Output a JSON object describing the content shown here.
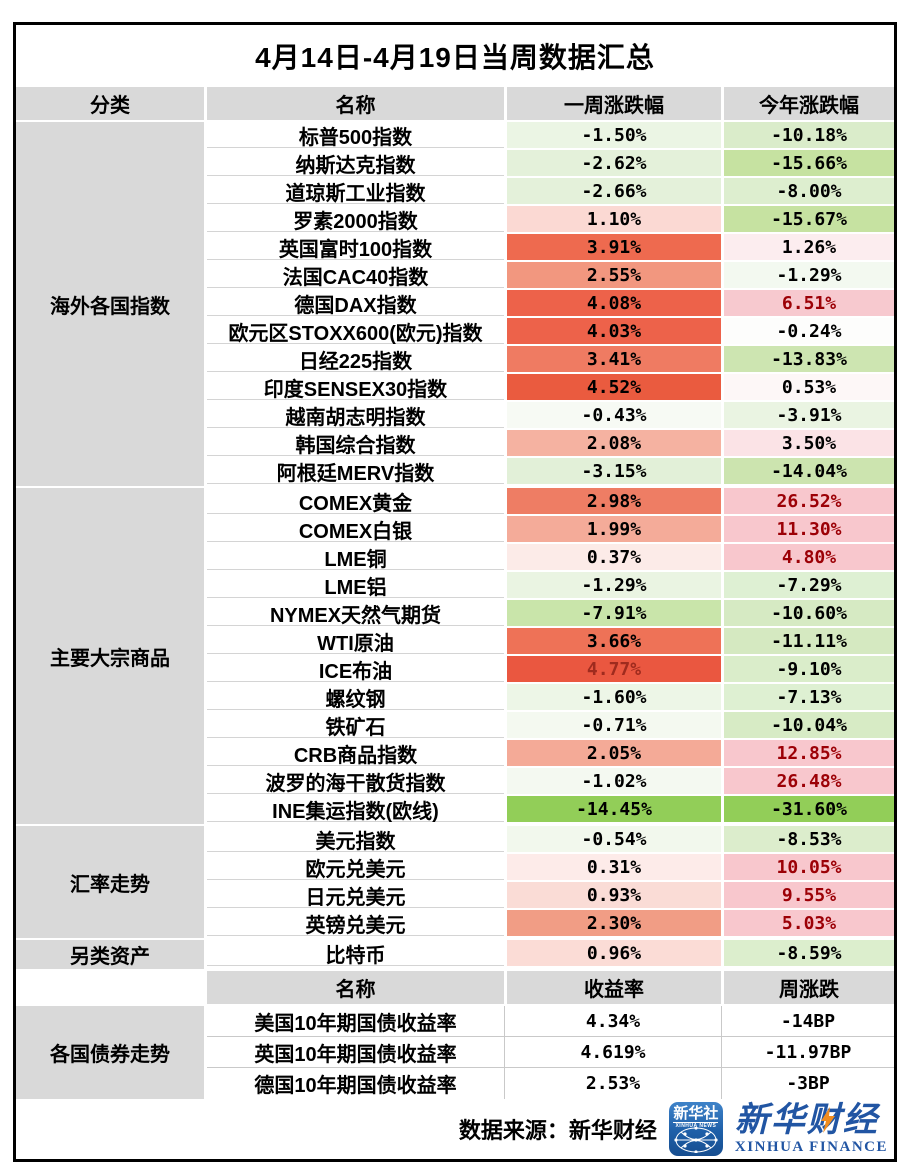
{
  "chart_data": {
    "type": "table",
    "title": "4月14日-4月19日当周数据汇总",
    "header_main": {
      "category": "分类",
      "name": "名称",
      "week": "一周涨跌幅",
      "ytd": "今年涨跌幅"
    },
    "header_bond": {
      "name": "名称",
      "yield": "收益率",
      "week_change": "周涨跌"
    },
    "sections": [
      {
        "category": "海外各国指数",
        "rows": [
          {
            "name": "标普500指数",
            "week": {
              "v": "-1.50%",
              "bg": "#ebf5e4",
              "fg": "#000000"
            },
            "ytd": {
              "v": "-10.18%",
              "bg": "#daecca",
              "fg": "#000000"
            }
          },
          {
            "name": "纳斯达克指数",
            "week": {
              "v": "-2.62%",
              "bg": "#e4f1da",
              "fg": "#000000"
            },
            "ytd": {
              "v": "-15.66%",
              "bg": "#c6e2a1",
              "fg": "#000000"
            }
          },
          {
            "name": "道琼斯工业指数",
            "week": {
              "v": "-2.66%",
              "bg": "#e4f1da",
              "fg": "#000000"
            },
            "ytd": {
              "v": "-8.00%",
              "bg": "#ddeecf",
              "fg": "#000000"
            }
          },
          {
            "name": "罗素2000指数",
            "week": {
              "v": "1.10%",
              "bg": "#fbd9d3",
              "fg": "#000000"
            },
            "ytd": {
              "v": "-15.67%",
              "bg": "#c6e2a1",
              "fg": "#000000"
            }
          },
          {
            "name": "英国富时100指数",
            "week": {
              "v": "3.91%",
              "bg": "#ee6a4f",
              "fg": "#000000"
            },
            "ytd": {
              "v": "1.26%",
              "bg": "#fcedef",
              "fg": "#000000"
            }
          },
          {
            "name": "法国CAC40指数",
            "week": {
              "v": "2.55%",
              "bg": "#f2977f",
              "fg": "#000000"
            },
            "ytd": {
              "v": "-1.29%",
              "bg": "#f3f9f0",
              "fg": "#000000"
            }
          },
          {
            "name": "德国DAX指数",
            "week": {
              "v": "4.08%",
              "bg": "#ed624a",
              "fg": "#000000"
            },
            "ytd": {
              "v": "6.51%",
              "bg": "#f7c9cf",
              "fg": "#9c0006"
            }
          },
          {
            "name": "欧元区STOXX600(欧元)指数",
            "week": {
              "v": "4.03%",
              "bg": "#ed624a",
              "fg": "#000000"
            },
            "ytd": {
              "v": "-0.24%",
              "bg": "#fdfdfc",
              "fg": "#000000"
            }
          },
          {
            "name": "日经225指数",
            "week": {
              "v": "3.41%",
              "bg": "#ef7b62",
              "fg": "#000000"
            },
            "ytd": {
              "v": "-13.83%",
              "bg": "#cde5b1",
              "fg": "#000000"
            }
          },
          {
            "name": "印度SENSEX30指数",
            "week": {
              "v": "4.52%",
              "bg": "#ea5b3f",
              "fg": "#000000"
            },
            "ytd": {
              "v": "0.53%",
              "bg": "#fdf7f7",
              "fg": "#000000"
            }
          },
          {
            "name": "越南胡志明指数",
            "week": {
              "v": "-0.43%",
              "bg": "#f7faf4",
              "fg": "#000000"
            },
            "ytd": {
              "v": "-3.91%",
              "bg": "#eaf4e2",
              "fg": "#000000"
            }
          },
          {
            "name": "韩国综合指数",
            "week": {
              "v": "2.08%",
              "bg": "#f5b2a1",
              "fg": "#000000"
            },
            "ytd": {
              "v": "3.50%",
              "bg": "#fbe3e6",
              "fg": "#000000"
            }
          },
          {
            "name": "阿根廷MERV指数",
            "week": {
              "v": "-3.15%",
              "bg": "#e2f0d8",
              "fg": "#000000"
            },
            "ytd": {
              "v": "-14.04%",
              "bg": "#cce4af",
              "fg": "#000000"
            }
          }
        ]
      },
      {
        "category": "主要大宗商品",
        "rows": [
          {
            "name": "COMEX黄金",
            "week": {
              "v": "2.98%",
              "bg": "#ee7d64",
              "fg": "#000000"
            },
            "ytd": {
              "v": "26.52%",
              "bg": "#f8c7cd",
              "fg": "#9c0006"
            }
          },
          {
            "name": "COMEX白银",
            "week": {
              "v": "1.99%",
              "bg": "#f4ab99",
              "fg": "#000000"
            },
            "ytd": {
              "v": "11.30%",
              "bg": "#f8c7cd",
              "fg": "#9c0006"
            }
          },
          {
            "name": "LME铜",
            "week": {
              "v": "0.37%",
              "bg": "#fcebe8",
              "fg": "#000000"
            },
            "ytd": {
              "v": "4.80%",
              "bg": "#f8c7cd",
              "fg": "#9c0006"
            }
          },
          {
            "name": "LME铝",
            "week": {
              "v": "-1.29%",
              "bg": "#eaf4e2",
              "fg": "#000000"
            },
            "ytd": {
              "v": "-7.29%",
              "bg": "#def0d3",
              "fg": "#000000"
            }
          },
          {
            "name": "NYMEX天然气期货",
            "week": {
              "v": "-7.91%",
              "bg": "#c9e5aa",
              "fg": "#000000"
            },
            "ytd": {
              "v": "-10.60%",
              "bg": "#d6eac3",
              "fg": "#000000"
            }
          },
          {
            "name": "WTI原油",
            "week": {
              "v": "3.66%",
              "bg": "#ee7257",
              "fg": "#000000"
            },
            "ytd": {
              "v": "-11.11%",
              "bg": "#d5e9c1",
              "fg": "#000000"
            }
          },
          {
            "name": "ICE布油",
            "week": {
              "v": "4.77%",
              "bg": "#ea5740",
              "fg": "#9f2b1e"
            },
            "ytd": {
              "v": "-9.10%",
              "bg": "#daedca",
              "fg": "#000000"
            }
          },
          {
            "name": "螺纹钢",
            "week": {
              "v": "-1.60%",
              "bg": "#edf6e7",
              "fg": "#000000"
            },
            "ytd": {
              "v": "-7.13%",
              "bg": "#def0d2",
              "fg": "#000000"
            }
          },
          {
            "name": "铁矿石",
            "week": {
              "v": "-0.71%",
              "bg": "#f4f9f0",
              "fg": "#000000"
            },
            "ytd": {
              "v": "-10.04%",
              "bg": "#d7ebc5",
              "fg": "#000000"
            }
          },
          {
            "name": "CRB商品指数",
            "week": {
              "v": "2.05%",
              "bg": "#f4aa97",
              "fg": "#000000"
            },
            "ytd": {
              "v": "12.85%",
              "bg": "#f8c7cd",
              "fg": "#9c0006"
            }
          },
          {
            "name": "波罗的海干散货指数",
            "week": {
              "v": "-1.02%",
              "bg": "#f4f9f1",
              "fg": "#000000"
            },
            "ytd": {
              "v": "26.48%",
              "bg": "#f8c7cd",
              "fg": "#9c0006"
            }
          },
          {
            "name": "INE集运指数(欧线)",
            "week": {
              "v": "-14.45%",
              "bg": "#92ce58",
              "fg": "#000000"
            },
            "ytd": {
              "v": "-31.60%",
              "bg": "#92ce58",
              "fg": "#000000"
            }
          }
        ]
      },
      {
        "category": "汇率走势",
        "rows": [
          {
            "name": "美元指数",
            "week": {
              "v": "-0.54%",
              "bg": "#f2f8ed",
              "fg": "#000000"
            },
            "ytd": {
              "v": "-8.53%",
              "bg": "#dcedcc",
              "fg": "#000000"
            }
          },
          {
            "name": "欧元兑美元",
            "week": {
              "v": "0.31%",
              "bg": "#fdebe9",
              "fg": "#000000"
            },
            "ytd": {
              "v": "10.05%",
              "bg": "#f8c7cd",
              "fg": "#9c0006"
            }
          },
          {
            "name": "日元兑美元",
            "week": {
              "v": "0.93%",
              "bg": "#fadcd6",
              "fg": "#000000"
            },
            "ytd": {
              "v": "9.55%",
              "bg": "#f8c7cd",
              "fg": "#9c0006"
            }
          },
          {
            "name": "英镑兑美元",
            "week": {
              "v": "2.30%",
              "bg": "#f19d85",
              "fg": "#000000"
            },
            "ytd": {
              "v": "5.03%",
              "bg": "#f8c7cd",
              "fg": "#9c0006"
            }
          }
        ]
      },
      {
        "category": "另类资产",
        "rows": [
          {
            "name": "比特币",
            "week": {
              "v": "0.96%",
              "bg": "#fbdcd6",
              "fg": "#000000"
            },
            "ytd": {
              "v": "-8.59%",
              "bg": "#dceecd",
              "fg": "#000000"
            }
          }
        ]
      }
    ],
    "bond_section": {
      "category": "各国债券走势",
      "rows": [
        {
          "name": "美国10年期国债收益率",
          "yield": "4.34%",
          "change": "-14BP"
        },
        {
          "name": "英国10年期国债收益率",
          "yield": "4.619%",
          "change": "-11.97BP"
        },
        {
          "name": "德国10年期国债收益率",
          "yield": "2.53%",
          "change": "-3BP"
        }
      ]
    },
    "footer": {
      "source": "数据来源：新华财经"
    }
  },
  "logos": {
    "news": {
      "cn": "新华社",
      "en": "XINHUA NEWS"
    },
    "finance": {
      "cn": "新华财经",
      "en": "XINHUA FINANCE"
    }
  },
  "colors": {
    "header_bg": "#d9d9d9",
    "category_bg": "#d9d9d9",
    "frame_border": "#000000",
    "ytd_positive_text": "#9c0006",
    "ytd_positive_bg": "#f8c7cd",
    "strong_red": "#ea5740",
    "strong_green": "#92ce58",
    "logo_blue": "#2155a3",
    "bolt_orange": "#f08c1e"
  }
}
